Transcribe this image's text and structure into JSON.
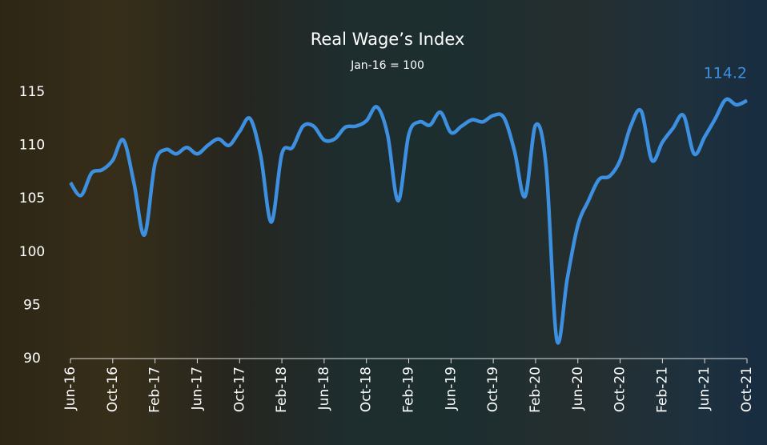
{
  "chart_data": {
    "type": "line",
    "title": "Real Wage’s Index",
    "subtitle": "Jan-16 = 100",
    "categories": [
      "Jun-16",
      null,
      null,
      null,
      "Oct-16",
      null,
      null,
      null,
      "Feb-17",
      null,
      null,
      null,
      "Jun-17",
      null,
      null,
      null,
      "Oct-17",
      null,
      null,
      null,
      "Feb-18",
      null,
      null,
      null,
      "Jun-18",
      null,
      null,
      null,
      "Oct-18",
      null,
      null,
      null,
      "Feb-19",
      null,
      null,
      null,
      "Jun-19",
      null,
      null,
      null,
      "Oct-19",
      null,
      null,
      null,
      "Feb-20",
      null,
      null,
      null,
      "Jun-20",
      null,
      null,
      null,
      "Oct-20",
      null,
      null,
      null,
      "Feb-21",
      null,
      null,
      null,
      "Jun-21",
      null,
      null,
      null,
      "Oct-21"
    ],
    "series": [
      {
        "name": "Real Wage’s Index",
        "color": "#3d8fe0",
        "values": [
          106.5,
          105.3,
          107.4,
          107.7,
          108.6,
          110.5,
          106.5,
          101.6,
          108.3,
          109.6,
          109.2,
          109.8,
          109.2,
          110.0,
          110.6,
          110.0,
          111.3,
          112.5,
          109.0,
          102.8,
          109.2,
          109.8,
          111.8,
          111.8,
          110.5,
          110.6,
          111.7,
          111.8,
          112.3,
          113.6,
          111.0,
          104.8,
          111.0,
          112.2,
          111.9,
          113.1,
          111.2,
          111.8,
          112.4,
          112.2,
          112.8,
          112.6,
          109.5,
          105.2,
          111.9,
          108.0,
          91.8,
          97.5,
          102.5,
          104.8,
          106.8,
          107.1,
          108.6,
          111.8,
          113.2,
          108.6,
          110.3,
          111.6,
          112.8,
          109.2,
          110.8,
          112.5,
          114.3,
          113.8,
          114.2
        ]
      }
    ],
    "ylim": [
      90,
      117
    ],
    "yticks": [
      90,
      95,
      100,
      105,
      110,
      115
    ],
    "grid": false
  }
}
